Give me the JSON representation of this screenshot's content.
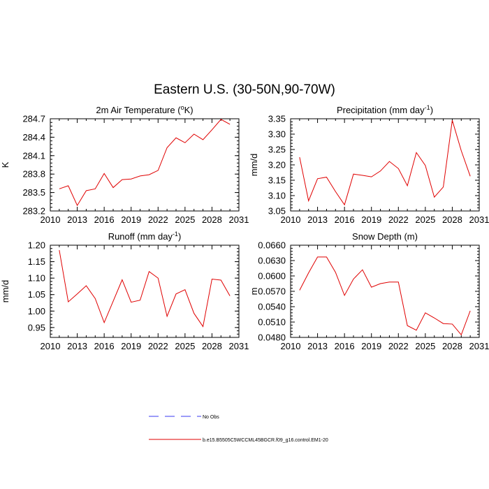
{
  "title": "Eastern U.S. (30-50N,90-70W)",
  "legend": {
    "items": [
      {
        "label": "No Obs",
        "color": "#3a3af0",
        "dash": true
      },
      {
        "label": "b.e15.B5505C5WCCML45BGCR.f09_g16.control.EM1-20",
        "color": "#e00000",
        "dash": false
      }
    ]
  },
  "chart_data": [
    {
      "type": "line",
      "title": "2m Air Temperature (",
      "title_sup": "o",
      "title_after": "K)",
      "ylabel": "K",
      "x": [
        2011,
        2012,
        2013,
        2014,
        2015,
        2016,
        2017,
        2018,
        2019,
        2020,
        2021,
        2022,
        2023,
        2024,
        2025,
        2026,
        2027,
        2028,
        2029,
        2030
      ],
      "values": [
        283.56,
        283.61,
        283.29,
        283.53,
        283.56,
        283.81,
        283.58,
        283.71,
        283.72,
        283.77,
        283.79,
        283.86,
        284.23,
        284.39,
        284.31,
        284.45,
        284.36,
        284.52,
        284.69,
        284.61
      ],
      "xlim": [
        2010,
        2031
      ],
      "ylim": [
        283.2,
        284.7
      ],
      "xticks": [
        2010,
        2013,
        2016,
        2019,
        2022,
        2025,
        2028,
        2031
      ],
      "yticks": [
        283.2,
        283.5,
        283.8,
        284.1,
        284.4,
        284.7
      ],
      "ytick_labels": [
        "283.2",
        "283.5",
        "283.8",
        "284.1",
        "284.4",
        "284.7"
      ],
      "color": "#e00000"
    },
    {
      "type": "line",
      "title": "Precipitation (mm day",
      "title_sup": "-1",
      "title_after": ")",
      "ylabel": "mm/d",
      "x": [
        2011,
        2012,
        2013,
        2014,
        2015,
        2016,
        2017,
        2018,
        2019,
        2020,
        2021,
        2022,
        2023,
        2024,
        2025,
        2026,
        2027,
        2028,
        2029,
        2030
      ],
      "values": [
        3.225,
        3.083,
        3.155,
        3.16,
        3.113,
        3.07,
        3.17,
        3.166,
        3.161,
        3.18,
        3.211,
        3.188,
        3.132,
        3.24,
        3.198,
        3.095,
        3.128,
        3.345,
        3.246,
        3.163
      ],
      "xlim": [
        2010,
        2031
      ],
      "ylim": [
        3.05,
        3.35
      ],
      "xticks": [
        2010,
        2013,
        2016,
        2019,
        2022,
        2025,
        2028,
        2031
      ],
      "yticks": [
        3.05,
        3.1,
        3.15,
        3.2,
        3.25,
        3.3,
        3.35
      ],
      "ytick_labels": [
        "3.05",
        "3.10",
        "3.15",
        "3.20",
        "3.25",
        "3.30",
        "3.35"
      ],
      "color": "#e00000"
    },
    {
      "type": "line",
      "title": "Runoff (mm day",
      "title_sup": "-1",
      "title_after": ")",
      "ylabel": "mm/d",
      "x": [
        2011,
        2012,
        2013,
        2014,
        2015,
        2016,
        2017,
        2018,
        2019,
        2020,
        2021,
        2022,
        2023,
        2024,
        2025,
        2026,
        2027,
        2028,
        2029,
        2030
      ],
      "values": [
        1.185,
        1.028,
        1.052,
        1.077,
        1.038,
        0.965,
        1.03,
        1.095,
        1.027,
        1.033,
        1.12,
        1.1,
        0.984,
        1.052,
        1.065,
        0.993,
        0.953,
        1.097,
        1.094,
        1.046
      ],
      "xlim": [
        2010,
        2031
      ],
      "ylim": [
        0.92,
        1.2
      ],
      "xticks": [
        2010,
        2013,
        2016,
        2019,
        2022,
        2025,
        2028,
        2031
      ],
      "yticks": [
        0.95,
        1.0,
        1.05,
        1.1,
        1.15,
        1.2
      ],
      "ytick_labels": [
        "0.95",
        "1.00",
        "1.05",
        "1.10",
        "1.15",
        "1.20"
      ],
      "color": "#e00000"
    },
    {
      "type": "line",
      "title": "Snow Depth (m)",
      "title_sup": "",
      "title_after": "",
      "ylabel": "m",
      "x": [
        2011,
        2012,
        2013,
        2014,
        2015,
        2016,
        2017,
        2018,
        2019,
        2020,
        2021,
        2022,
        2023,
        2024,
        2025,
        2026,
        2027,
        2028,
        2029,
        2030
      ],
      "values": [
        0.0572,
        0.0606,
        0.0637,
        0.0637,
        0.0607,
        0.0562,
        0.0594,
        0.0612,
        0.0578,
        0.0585,
        0.0588,
        0.0588,
        0.0503,
        0.0494,
        0.0528,
        0.0518,
        0.0507,
        0.0506,
        0.0485,
        0.0532
      ],
      "xlim": [
        2010,
        2031
      ],
      "ylim": [
        0.048,
        0.066
      ],
      "xticks": [
        2010,
        2013,
        2016,
        2019,
        2022,
        2025,
        2028,
        2031
      ],
      "yticks": [
        0.048,
        0.051,
        0.054,
        0.057,
        0.06,
        0.063,
        0.066
      ],
      "ytick_labels": [
        "0.0480",
        "0.0510",
        "0.0540",
        "0.0570",
        "0.0600",
        "0.0630",
        "0.0660"
      ],
      "color": "#e00000"
    }
  ]
}
